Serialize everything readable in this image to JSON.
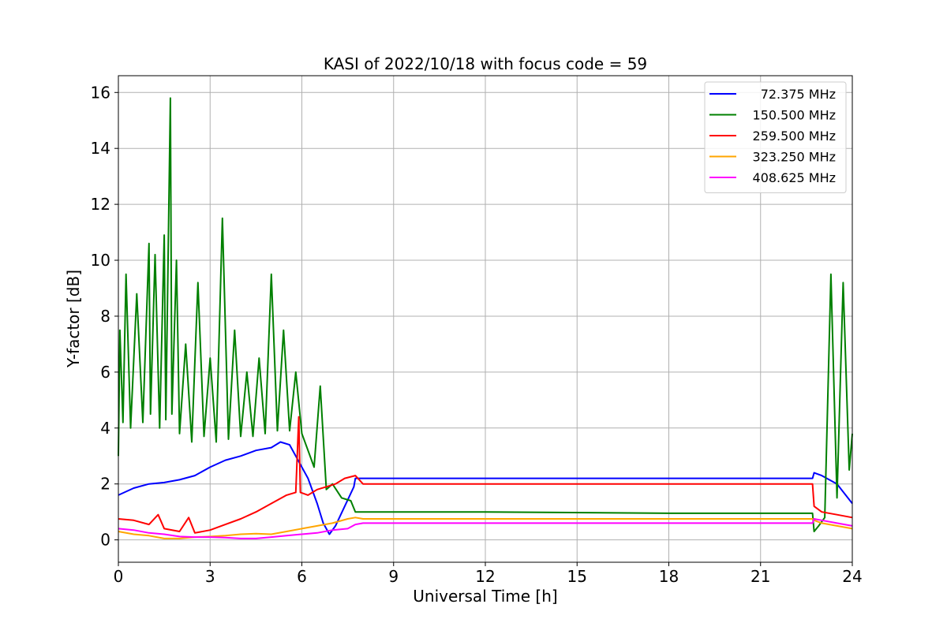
{
  "chart_data": {
    "type": "line",
    "title": "KASI of 2022/10/18 with focus code = 59",
    "xlabel": "Universal Time [h]",
    "ylabel": "Y-factor [dB]",
    "xlim": [
      0,
      24
    ],
    "ylim": [
      -0.8,
      16.6
    ],
    "xticks": [
      0,
      3,
      6,
      9,
      12,
      15,
      18,
      21,
      24
    ],
    "yticks": [
      0,
      2,
      4,
      6,
      8,
      10,
      12,
      14,
      16
    ],
    "grid": true,
    "legend_position": "top-right",
    "series": [
      {
        "name": "72.375 MHz",
        "color": "#0000ff",
        "x": [
          0,
          0.5,
          1,
          1.5,
          2,
          2.5,
          3,
          3.5,
          4,
          4.5,
          5,
          5.3,
          5.6,
          5.9,
          6.2,
          6.5,
          6.7,
          6.9,
          7.1,
          7.4,
          7.7,
          7.75,
          8.5,
          12,
          18,
          22.7,
          22.75,
          23.0,
          23.5,
          24.0
        ],
        "y": [
          1.6,
          1.85,
          2.0,
          2.05,
          2.15,
          2.3,
          2.6,
          2.85,
          3.0,
          3.2,
          3.3,
          3.5,
          3.4,
          2.8,
          2.2,
          1.3,
          0.6,
          0.2,
          0.5,
          1.2,
          1.9,
          2.2,
          2.2,
          2.2,
          2.2,
          2.2,
          2.4,
          2.3,
          2.0,
          1.3
        ]
      },
      {
        "name": "150.500 MHz",
        "color": "#008000",
        "x": [
          0,
          0.05,
          0.15,
          0.25,
          0.4,
          0.6,
          0.8,
          1.0,
          1.05,
          1.2,
          1.35,
          1.5,
          1.55,
          1.7,
          1.75,
          1.9,
          2.0,
          2.2,
          2.4,
          2.6,
          2.8,
          3.0,
          3.2,
          3.4,
          3.6,
          3.8,
          4.0,
          4.2,
          4.4,
          4.6,
          4.8,
          5.0,
          5.2,
          5.4,
          5.6,
          5.8,
          6.0,
          6.2,
          6.4,
          6.6,
          6.8,
          7.0,
          7.3,
          7.6,
          7.75,
          8.0,
          12,
          18,
          22.7,
          22.75,
          22.9,
          23.1,
          23.3,
          23.5,
          23.7,
          23.9,
          24.0
        ],
        "y": [
          3.0,
          7.5,
          4.2,
          9.5,
          4.0,
          8.8,
          4.2,
          10.6,
          4.5,
          10.2,
          4.0,
          10.9,
          4.3,
          15.8,
          4.5,
          10.0,
          3.8,
          7.0,
          3.5,
          9.2,
          3.7,
          6.5,
          3.5,
          11.5,
          3.6,
          7.5,
          3.7,
          6.0,
          3.7,
          6.5,
          3.8,
          9.5,
          3.9,
          7.5,
          3.9,
          6.0,
          3.8,
          3.2,
          2.6,
          5.5,
          1.8,
          2.0,
          1.5,
          1.4,
          1.0,
          1.0,
          1.0,
          0.95,
          0.95,
          0.3,
          0.5,
          0.8,
          9.5,
          1.5,
          9.2,
          2.5,
          3.8
        ]
      },
      {
        "name": "259.500 MHz",
        "color": "#ff0000",
        "x": [
          0,
          0.5,
          1,
          1.3,
          1.5,
          2.0,
          2.3,
          2.5,
          3.0,
          3.5,
          4.0,
          4.5,
          5.0,
          5.5,
          5.8,
          5.9,
          5.95,
          6.2,
          6.5,
          6.8,
          7.1,
          7.4,
          7.75,
          8.0,
          12,
          18,
          22.7,
          22.75,
          23.0,
          23.5,
          24.0
        ],
        "y": [
          0.75,
          0.7,
          0.55,
          0.9,
          0.4,
          0.3,
          0.8,
          0.25,
          0.35,
          0.55,
          0.75,
          1.0,
          1.3,
          1.6,
          1.7,
          4.4,
          1.7,
          1.6,
          1.8,
          1.9,
          2.0,
          2.2,
          2.3,
          2.0,
          2.0,
          2.0,
          2.0,
          1.2,
          1.0,
          0.9,
          0.8
        ]
      },
      {
        "name": "323.250 MHz",
        "color": "#ffa500",
        "x": [
          0,
          0.5,
          1,
          1.5,
          2,
          2.5,
          3,
          3.5,
          4,
          4.5,
          5,
          5.5,
          6,
          6.5,
          7,
          7.5,
          7.75,
          8.0,
          12,
          18,
          22.7,
          22.75,
          23.0,
          23.5,
          24.0
        ],
        "y": [
          0.3,
          0.2,
          0.15,
          0.05,
          0.05,
          0.1,
          0.12,
          0.15,
          0.2,
          0.22,
          0.2,
          0.3,
          0.4,
          0.5,
          0.6,
          0.75,
          0.8,
          0.75,
          0.75,
          0.75,
          0.75,
          0.7,
          0.6,
          0.5,
          0.4
        ]
      },
      {
        "name": "408.625 MHz",
        "color": "#ff00ff",
        "x": [
          0,
          0.5,
          1,
          1.5,
          2,
          2.5,
          3,
          3.5,
          4,
          4.5,
          5,
          5.5,
          6,
          6.5,
          7,
          7.5,
          7.75,
          8.0,
          12,
          18,
          22.7,
          22.75,
          23.0,
          23.5,
          24.0
        ],
        "y": [
          0.4,
          0.35,
          0.25,
          0.2,
          0.12,
          0.1,
          0.1,
          0.08,
          0.05,
          0.05,
          0.1,
          0.15,
          0.2,
          0.25,
          0.35,
          0.4,
          0.55,
          0.6,
          0.6,
          0.6,
          0.6,
          0.75,
          0.7,
          0.6,
          0.5
        ]
      }
    ]
  }
}
